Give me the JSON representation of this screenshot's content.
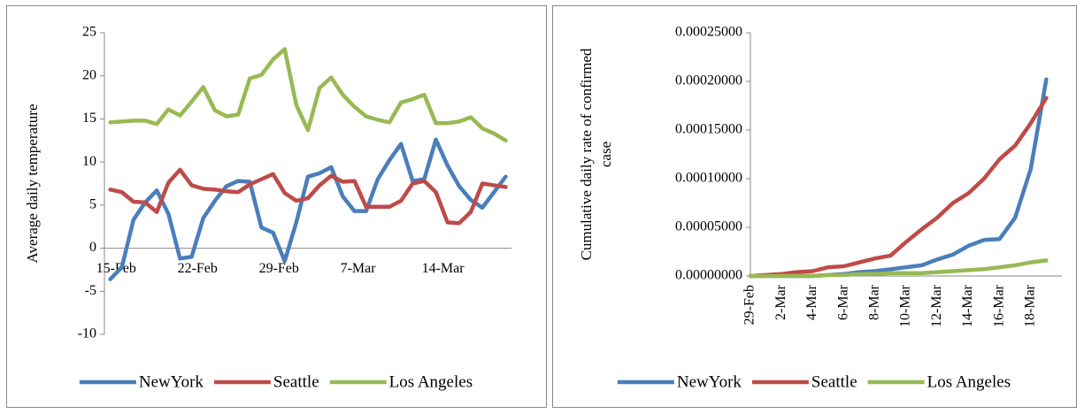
{
  "chart_data": [
    {
      "type": "line",
      "y_label": [
        "Average daily temperature"
      ],
      "categories": [
        "15-Feb",
        null,
        null,
        null,
        null,
        null,
        null,
        "22-Feb",
        null,
        null,
        null,
        null,
        null,
        null,
        "29-Feb",
        null,
        null,
        null,
        null,
        null,
        null,
        "7-Mar",
        null,
        null,
        null,
        null,
        null,
        null,
        "14-Mar",
        null,
        null,
        null,
        null,
        null,
        null
      ],
      "series": [
        {
          "name": "NewYork",
          "color": "#4a7ebb",
          "values": [
            -3.6,
            -2.2,
            3.3,
            5.3,
            6.7,
            4.0,
            -1.2,
            -1.0,
            3.5,
            5.5,
            7.2,
            7.8,
            7.7,
            2.4,
            1.8,
            -1.5,
            3.0,
            8.3,
            8.7,
            9.4,
            6.0,
            4.3,
            4.3,
            8.0,
            10.2,
            12.1,
            7.8,
            8.0,
            12.6,
            9.6,
            7.2,
            5.6,
            4.7,
            6.5,
            8.3
          ]
        },
        {
          "name": "Seattle",
          "color": "#be4b48",
          "values": [
            6.8,
            6.5,
            5.4,
            5.3,
            4.2,
            7.6,
            9.1,
            7.3,
            6.9,
            6.8,
            6.6,
            6.5,
            7.4,
            8.0,
            8.6,
            6.4,
            5.5,
            5.8,
            7.3,
            8.4,
            7.7,
            7.8,
            4.8,
            4.8,
            4.8,
            5.5,
            7.5,
            7.8,
            6.5,
            3.0,
            2.9,
            4.2,
            7.5,
            7.3,
            7.1
          ]
        },
        {
          "name": "Los Angeles",
          "color": "#98b954",
          "values": [
            14.6,
            14.7,
            14.8,
            14.8,
            14.4,
            16.1,
            15.4,
            17.0,
            18.7,
            16.0,
            15.3,
            15.5,
            19.7,
            20.1,
            21.9,
            23.1,
            16.6,
            13.7,
            18.6,
            19.8,
            17.8,
            16.4,
            15.3,
            14.9,
            14.6,
            16.9,
            17.3,
            17.8,
            14.5,
            14.5,
            14.7,
            15.2,
            13.9,
            13.3,
            12.5
          ]
        }
      ],
      "ylim": [
        -10,
        25
      ],
      "yticks": [
        -10,
        -5,
        0,
        5,
        10,
        15,
        20,
        25
      ],
      "grid": false,
      "legend": "bottom"
    },
    {
      "type": "line",
      "y_label": [
        "Cumulative daily rate of confirmed",
        "case"
      ],
      "categories": [
        "29-Feb",
        null,
        "2-Mar",
        null,
        "4-Mar",
        null,
        "6-Mar",
        null,
        "8-Mar",
        null,
        "10-Mar",
        null,
        "12-Mar",
        null,
        "14-Mar",
        null,
        "16-Mar",
        null,
        "18-Mar",
        null
      ],
      "series": [
        {
          "name": "NewYork",
          "color": "#4a7ebb",
          "values": [
            0,
            0,
            0,
            0,
            0,
            1e-06,
            2e-06,
            4e-06,
            5e-06,
            7e-06,
            9e-06,
            1.1e-05,
            1.7e-05,
            2.2e-05,
            3.1e-05,
            3.7e-05,
            3.8e-05,
            6e-05,
            0.00011,
            0.000202
          ]
        },
        {
          "name": "Seattle",
          "color": "#be4b48",
          "values": [
            0,
            1e-06,
            2e-06,
            4e-06,
            5e-06,
            9e-06,
            1e-05,
            1.4e-05,
            1.8e-05,
            2.1e-05,
            3.5e-05,
            4.8e-05,
            6e-05,
            7.5e-05,
            8.5e-05,
            0.0001,
            0.00012,
            0.000134,
            0.000157,
            0.000183
          ]
        },
        {
          "name": "Los Angeles",
          "color": "#98b954",
          "values": [
            0,
            0,
            0,
            0,
            0,
            1e-06,
            1e-06,
            2e-06,
            2e-06,
            3e-06,
            3e-06,
            3e-06,
            4e-06,
            5e-06,
            6e-06,
            7e-06,
            9e-06,
            1.1e-05,
            1.4e-05,
            1.6e-05
          ]
        }
      ],
      "ylim": [
        0,
        0.00025
      ],
      "yticks": [
        {
          "value": 0,
          "label": "0.00000000"
        },
        {
          "value": 5e-05,
          "label": "0.00005000"
        },
        {
          "value": 0.0001,
          "label": "0.00010000"
        },
        {
          "value": 0.00015,
          "label": "0.00015000"
        },
        {
          "value": 0.0002,
          "label": "0.00020000"
        },
        {
          "value": 0.00025,
          "label": "0.00025000"
        }
      ],
      "grid": false,
      "legend": "bottom"
    }
  ]
}
